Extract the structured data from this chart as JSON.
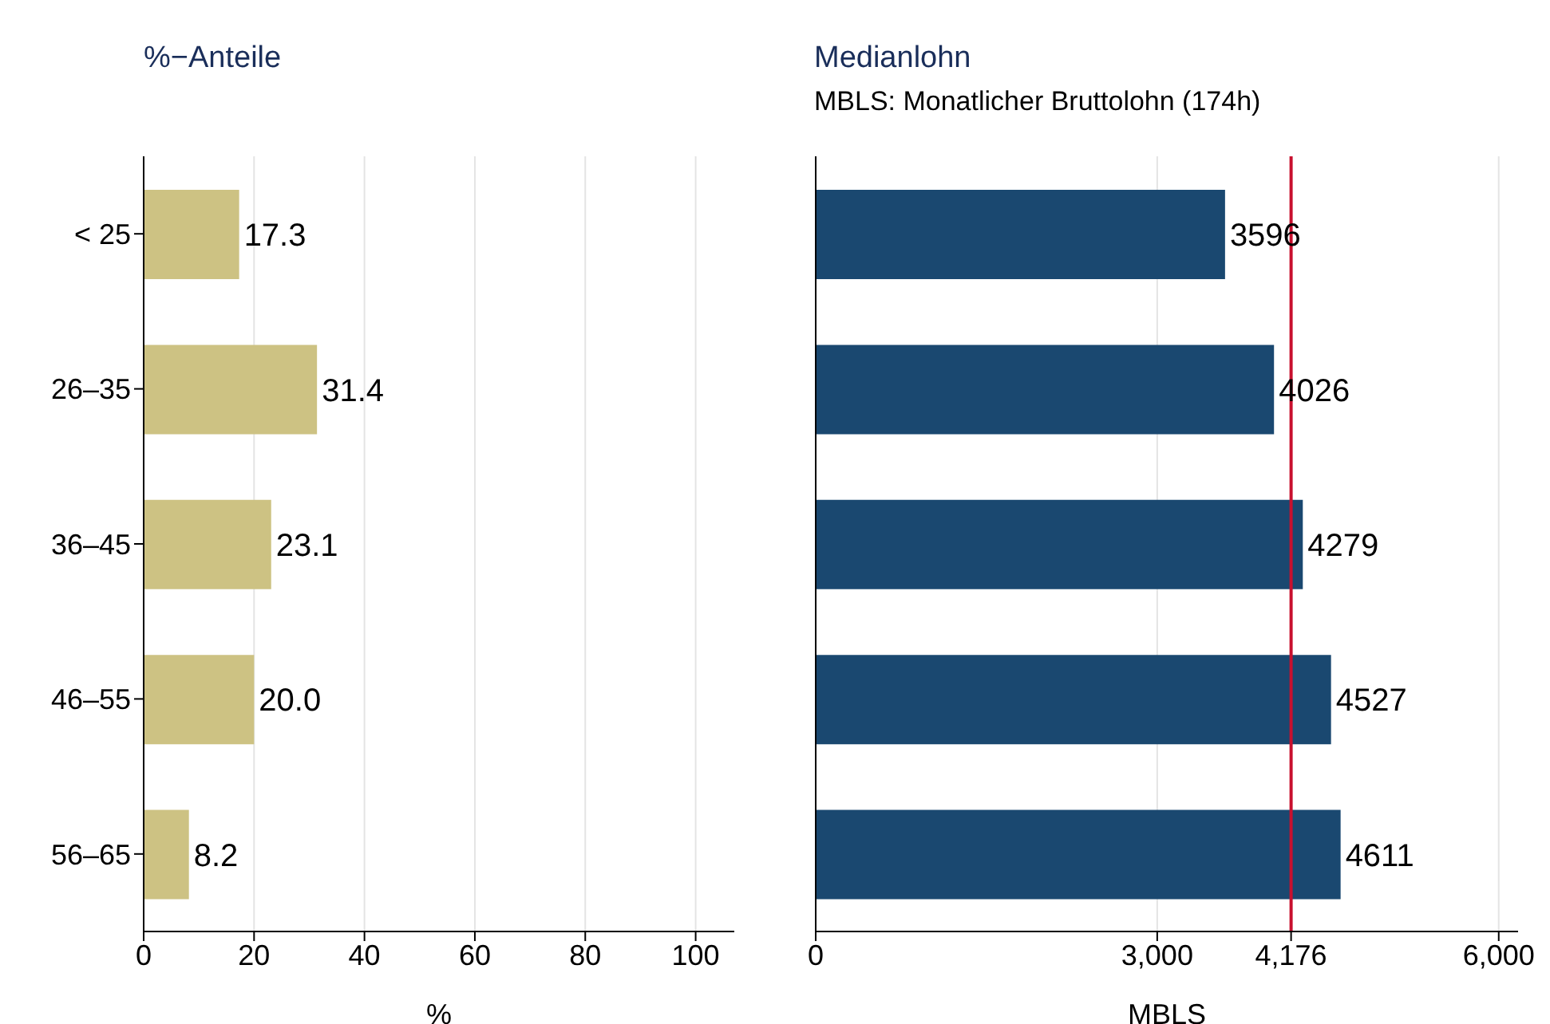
{
  "chart_data": [
    {
      "type": "bar",
      "orientation": "horizontal",
      "title": "%−Anteile",
      "xlabel": "%",
      "categories": [
        "< 25",
        "26–35",
        "36–45",
        "46–55",
        "56–65"
      ],
      "values": [
        17.3,
        31.4,
        23.1,
        20.0,
        8.2
      ],
      "value_labels": [
        "17.3",
        "31.4",
        "23.1",
        "20.0",
        "8.2"
      ],
      "color": "#cdc283",
      "xlim": [
        0,
        107
      ],
      "xticks": [
        0,
        20,
        40,
        60,
        80,
        100
      ],
      "grid": "x"
    },
    {
      "type": "bar",
      "orientation": "horizontal",
      "title": "Medianlohn",
      "subtitle": "MBLS: Monatlicher Bruttolohn (174h)",
      "xlabel": "MBLS",
      "categories": [
        null,
        null,
        null,
        null,
        null
      ],
      "values": [
        3596,
        4026,
        4279,
        4527,
        4611
      ],
      "data_labels": true,
      "color": "#1a4870",
      "xlim": [
        0,
        6170
      ],
      "xticks": [
        0,
        {
          "value": 3000,
          "label": "3,000"
        },
        {
          "value": 4176,
          "label": "4,176"
        },
        {
          "value": 6000,
          "label": "6,000"
        }
      ],
      "grid": "x",
      "tick_labels": "x",
      "ref_lines": [
        {
          "axis": "x",
          "value": 4176,
          "color": "#c8102e"
        }
      ]
    }
  ]
}
